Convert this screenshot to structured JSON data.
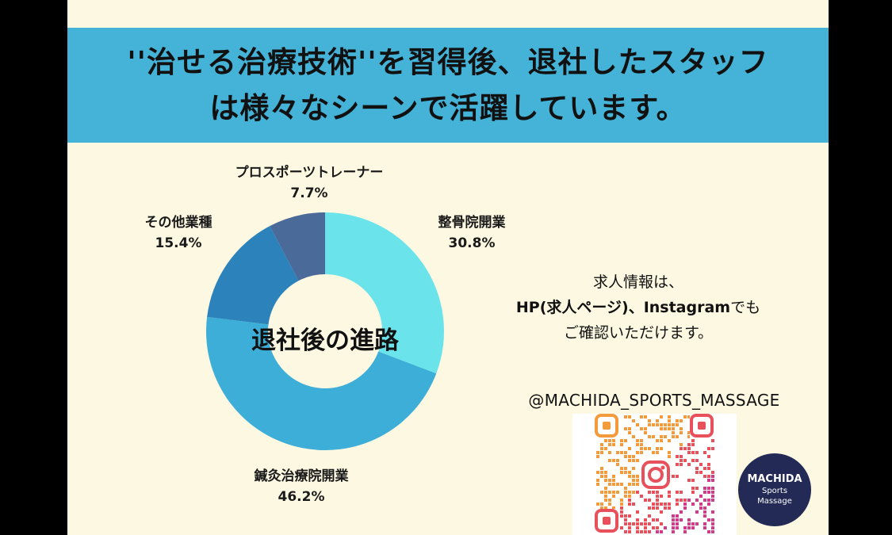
{
  "header": {
    "line1": "''治せる治療技術''を習得後、退社したスタッフ",
    "line2": "は様々なシーンで活躍しています。"
  },
  "chart_data": {
    "type": "pie",
    "title": "退社後の進路",
    "categories": [
      "整骨院開業",
      "鍼灸治療院開業",
      "その他業種",
      "プロスポーツトレーナー"
    ],
    "values": [
      30.8,
      46.2,
      15.4,
      7.7
    ],
    "value_labels": [
      "30.8%",
      "46.2%",
      "15.4%",
      "7.7%"
    ],
    "colors": [
      "#6ae4ea",
      "#3daed8",
      "#2c83bb",
      "#4a6a9a"
    ],
    "donut": true
  },
  "info": {
    "line1": "求人情報は、",
    "line2_bold": "HP(求人ページ)、Instagram",
    "line2_rest": "でも",
    "line3": "ご確認いただけます。",
    "handle": "@MACHIDA_SPORTS_MASSAGE"
  },
  "badge": {
    "line1": "MACHIDA",
    "line2": "Sports",
    "line3": "Massage"
  },
  "qr_icon": "instagram-icon"
}
